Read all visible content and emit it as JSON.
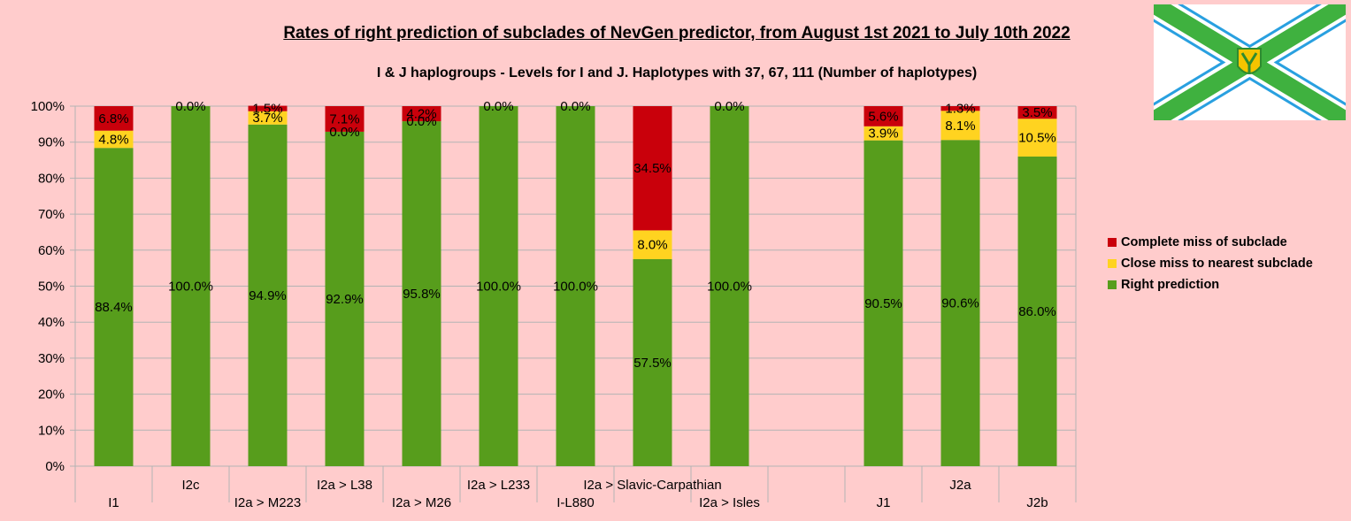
{
  "chart_data": {
    "type": "bar",
    "stacked": true,
    "title": "Rates of right prediction of subclades of NevGen predictor, from August 1st 2021 to July 10th 2022",
    "subtitle": "I & J haplogroups - Levels for I and J. Haplotypes with 37, 67, 111 (Number of haplotypes)",
    "categories": [
      "I1",
      "I2c",
      "I2a > M223",
      "I2a > L38",
      "I2a > M26",
      "I2a > L233",
      "I-L880",
      "I2a > Slavic-Carpathian",
      "I2a > Isles",
      "",
      "J1",
      "J2a",
      "J2b"
    ],
    "series": [
      {
        "name": "Right prediction",
        "color": "#579d1c",
        "values": [
          88.4,
          100.0,
          94.9,
          92.9,
          95.8,
          100.0,
          100.0,
          57.5,
          100.0,
          null,
          90.5,
          90.6,
          86.0
        ],
        "labels": [
          "88.4%",
          "100.0%",
          "94.9%",
          "92.9%",
          "95.8%",
          "100.0%",
          "100.0%",
          "57.5%",
          "100.0%",
          "",
          "90.5%",
          "90.6%",
          "86.0%"
        ]
      },
      {
        "name": "Close miss to nearest subclade",
        "color": "#ffd320",
        "values": [
          4.8,
          0.0,
          3.7,
          0.0,
          0.0,
          0.0,
          0.0,
          8.0,
          0.0,
          null,
          3.9,
          8.1,
          10.5
        ],
        "labels": [
          "4.8%",
          "",
          "3.7%",
          "0.0%",
          "0.0%",
          "",
          "",
          "8.0%",
          "",
          "",
          "3.9%",
          "8.1%",
          "10.5%"
        ]
      },
      {
        "name": "Complete miss of subclade",
        "color": "#c9000b",
        "values": [
          6.8,
          0.0,
          1.5,
          7.1,
          4.2,
          0.0,
          0.0,
          34.5,
          0.0,
          null,
          5.6,
          1.3,
          3.5
        ],
        "labels": [
          "6.8%",
          "0.0%",
          "1.5%",
          "7.1%",
          "4.2%",
          "0.0%",
          "0.0%",
          "34.5%",
          "0.0%",
          "",
          "5.6%",
          "1.3%",
          "3.5%"
        ]
      }
    ],
    "y_ticks": [
      "0%",
      "10%",
      "20%",
      "30%",
      "40%",
      "50%",
      "60%",
      "70%",
      "80%",
      "90%",
      "100%"
    ],
    "ylim": [
      0,
      100
    ],
    "grid": true,
    "legend_position": "right"
  }
}
